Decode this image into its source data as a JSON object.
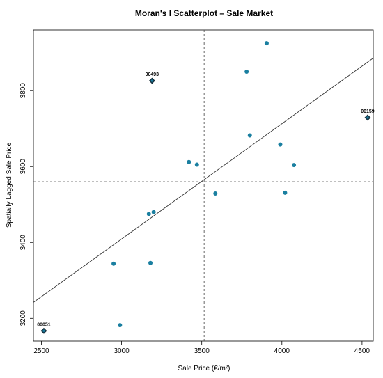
{
  "chart_data": {
    "type": "scatter",
    "title": "Moran's I Scatterplot – Sale Market",
    "xlabel": "Sale Price (€/m²)",
    "ylabel": "Spatially Lagged Sale Price",
    "xlim": [
      2450,
      4570
    ],
    "ylim": [
      3140,
      3960
    ],
    "xticks": [
      2500,
      3000,
      3500,
      4000,
      4500
    ],
    "yticks": [
      3200,
      3400,
      3600,
      3800
    ],
    "mean_x": 3515,
    "mean_y": 3560,
    "regression_line": {
      "x": [
        2450,
        4570
      ],
      "y": [
        3242,
        3886
      ]
    },
    "grid": false,
    "point_color": "#1a7fa0",
    "highlight_color": "#163b4e",
    "points": [
      {
        "x": 2950,
        "y": 3344
      },
      {
        "x": 2990,
        "y": 3182
      },
      {
        "x": 3170,
        "y": 3475
      },
      {
        "x": 3180,
        "y": 3346
      },
      {
        "x": 3200,
        "y": 3480
      },
      {
        "x": 3420,
        "y": 3612
      },
      {
        "x": 3470,
        "y": 3605
      },
      {
        "x": 3585,
        "y": 3529
      },
      {
        "x": 3780,
        "y": 3850
      },
      {
        "x": 3800,
        "y": 3682
      },
      {
        "x": 3905,
        "y": 3925
      },
      {
        "x": 3990,
        "y": 3658
      },
      {
        "x": 4020,
        "y": 3531
      },
      {
        "x": 4075,
        "y": 3604
      }
    ],
    "highlighted_points": [
      {
        "label": "00051",
        "x": 2515,
        "y": 3167
      },
      {
        "label": "00493",
        "x": 3190,
        "y": 3826
      },
      {
        "label": "00159",
        "x": 4535,
        "y": 3729
      }
    ]
  }
}
